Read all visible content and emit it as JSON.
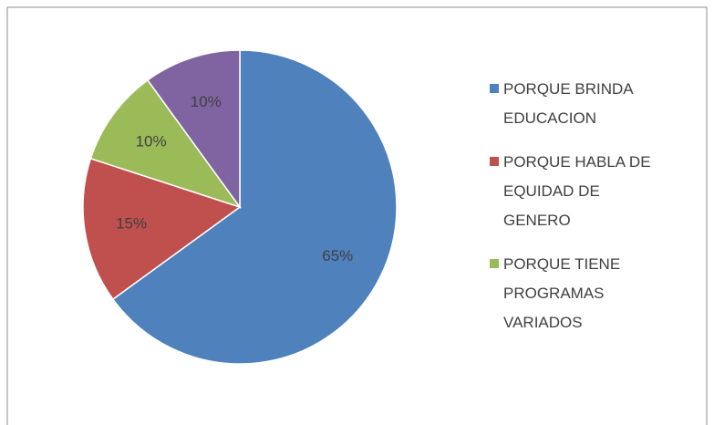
{
  "chart_data": {
    "type": "pie",
    "categories": [
      "PORQUE BRINDA EDUCACION",
      "PORQUE HABLA DE EQUIDAD DE GENERO",
      "PORQUE TIENE PROGRAMAS VARIADOS",
      null
    ],
    "values": [
      65,
      15,
      10,
      10
    ],
    "value_labels": [
      "65%",
      "15%",
      "10%",
      "10%"
    ],
    "colors": [
      "#4f81bd",
      "#c0504d",
      "#9bbb59",
      "#8064a2"
    ],
    "legend": "right"
  }
}
